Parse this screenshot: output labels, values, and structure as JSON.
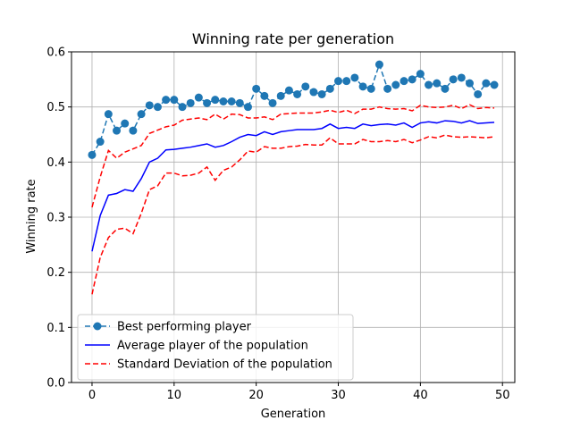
{
  "chart_data": {
    "type": "line",
    "title": "Winning rate per generation",
    "xlabel": "Generation",
    "ylabel": "Winning rate",
    "xlim": [
      -2.5,
      51.5
    ],
    "ylim": [
      0.0,
      0.6
    ],
    "xticks": [
      0,
      10,
      20,
      30,
      40,
      50
    ],
    "yticks": [
      0.0,
      0.1,
      0.2,
      0.3,
      0.4,
      0.5,
      0.6
    ],
    "grid": true,
    "legend_position": "lower-left",
    "x": [
      0,
      1,
      2,
      3,
      4,
      5,
      6,
      7,
      8,
      9,
      10,
      11,
      12,
      13,
      14,
      15,
      16,
      17,
      18,
      19,
      20,
      21,
      22,
      23,
      24,
      25,
      26,
      27,
      28,
      29,
      30,
      31,
      32,
      33,
      34,
      35,
      36,
      37,
      38,
      39,
      40,
      41,
      42,
      43,
      44,
      45,
      46,
      47,
      48,
      49
    ],
    "series": [
      {
        "name": "Best performing player",
        "color": "#1f77b4",
        "style": "dashed-marker",
        "values": [
          0.413,
          0.437,
          0.487,
          0.457,
          0.47,
          0.457,
          0.487,
          0.503,
          0.5,
          0.513,
          0.513,
          0.5,
          0.507,
          0.517,
          0.507,
          0.513,
          0.51,
          0.51,
          0.507,
          0.5,
          0.533,
          0.52,
          0.507,
          0.52,
          0.53,
          0.523,
          0.537,
          0.527,
          0.523,
          0.533,
          0.547,
          0.547,
          0.553,
          0.537,
          0.533,
          0.577,
          0.533,
          0.54,
          0.547,
          0.55,
          0.56,
          0.54,
          0.543,
          0.533,
          0.55,
          0.553,
          0.543,
          0.523,
          0.543,
          0.54
        ]
      },
      {
        "name": "Average player of the population",
        "color": "#0000ff",
        "style": "solid",
        "values": [
          0.238,
          0.303,
          0.34,
          0.343,
          0.35,
          0.347,
          0.37,
          0.4,
          0.407,
          0.422,
          0.423,
          0.425,
          0.427,
          0.43,
          0.433,
          0.427,
          0.43,
          0.437,
          0.445,
          0.45,
          0.448,
          0.455,
          0.45,
          0.455,
          0.457,
          0.459,
          0.459,
          0.459,
          0.461,
          0.469,
          0.461,
          0.463,
          0.461,
          0.469,
          0.466,
          0.468,
          0.469,
          0.467,
          0.471,
          0.463,
          0.471,
          0.473,
          0.471,
          0.475,
          0.474,
          0.471,
          0.475,
          0.47,
          0.471,
          0.472
        ]
      },
      {
        "name": "Standard Deviation of the population",
        "color": "#ff0000",
        "style": "dashed",
        "values": [
          0.318,
          0.373,
          0.421,
          0.407,
          0.418,
          0.424,
          0.43,
          0.452,
          0.458,
          0.464,
          0.467,
          0.476,
          0.478,
          0.48,
          0.477,
          0.487,
          0.478,
          0.487,
          0.486,
          0.48,
          0.48,
          0.482,
          0.477,
          0.487,
          0.488,
          0.489,
          0.489,
          0.489,
          0.491,
          0.494,
          0.49,
          0.494,
          0.488,
          0.496,
          0.496,
          0.5,
          0.497,
          0.496,
          0.497,
          0.493,
          0.503,
          0.5,
          0.499,
          0.5,
          0.503,
          0.497,
          0.504,
          0.497,
          0.499,
          0.498
        ]
      },
      {
        "name": "",
        "color": "#ff0000",
        "style": "dashed",
        "values": [
          0.16,
          0.227,
          0.263,
          0.278,
          0.28,
          0.27,
          0.307,
          0.35,
          0.357,
          0.38,
          0.38,
          0.375,
          0.376,
          0.38,
          0.391,
          0.367,
          0.385,
          0.391,
          0.404,
          0.42,
          0.418,
          0.428,
          0.425,
          0.425,
          0.428,
          0.429,
          0.432,
          0.431,
          0.431,
          0.444,
          0.433,
          0.433,
          0.433,
          0.441,
          0.437,
          0.437,
          0.439,
          0.437,
          0.441,
          0.435,
          0.44,
          0.446,
          0.444,
          0.449,
          0.446,
          0.445,
          0.446,
          0.445,
          0.444,
          0.446
        ]
      }
    ]
  }
}
